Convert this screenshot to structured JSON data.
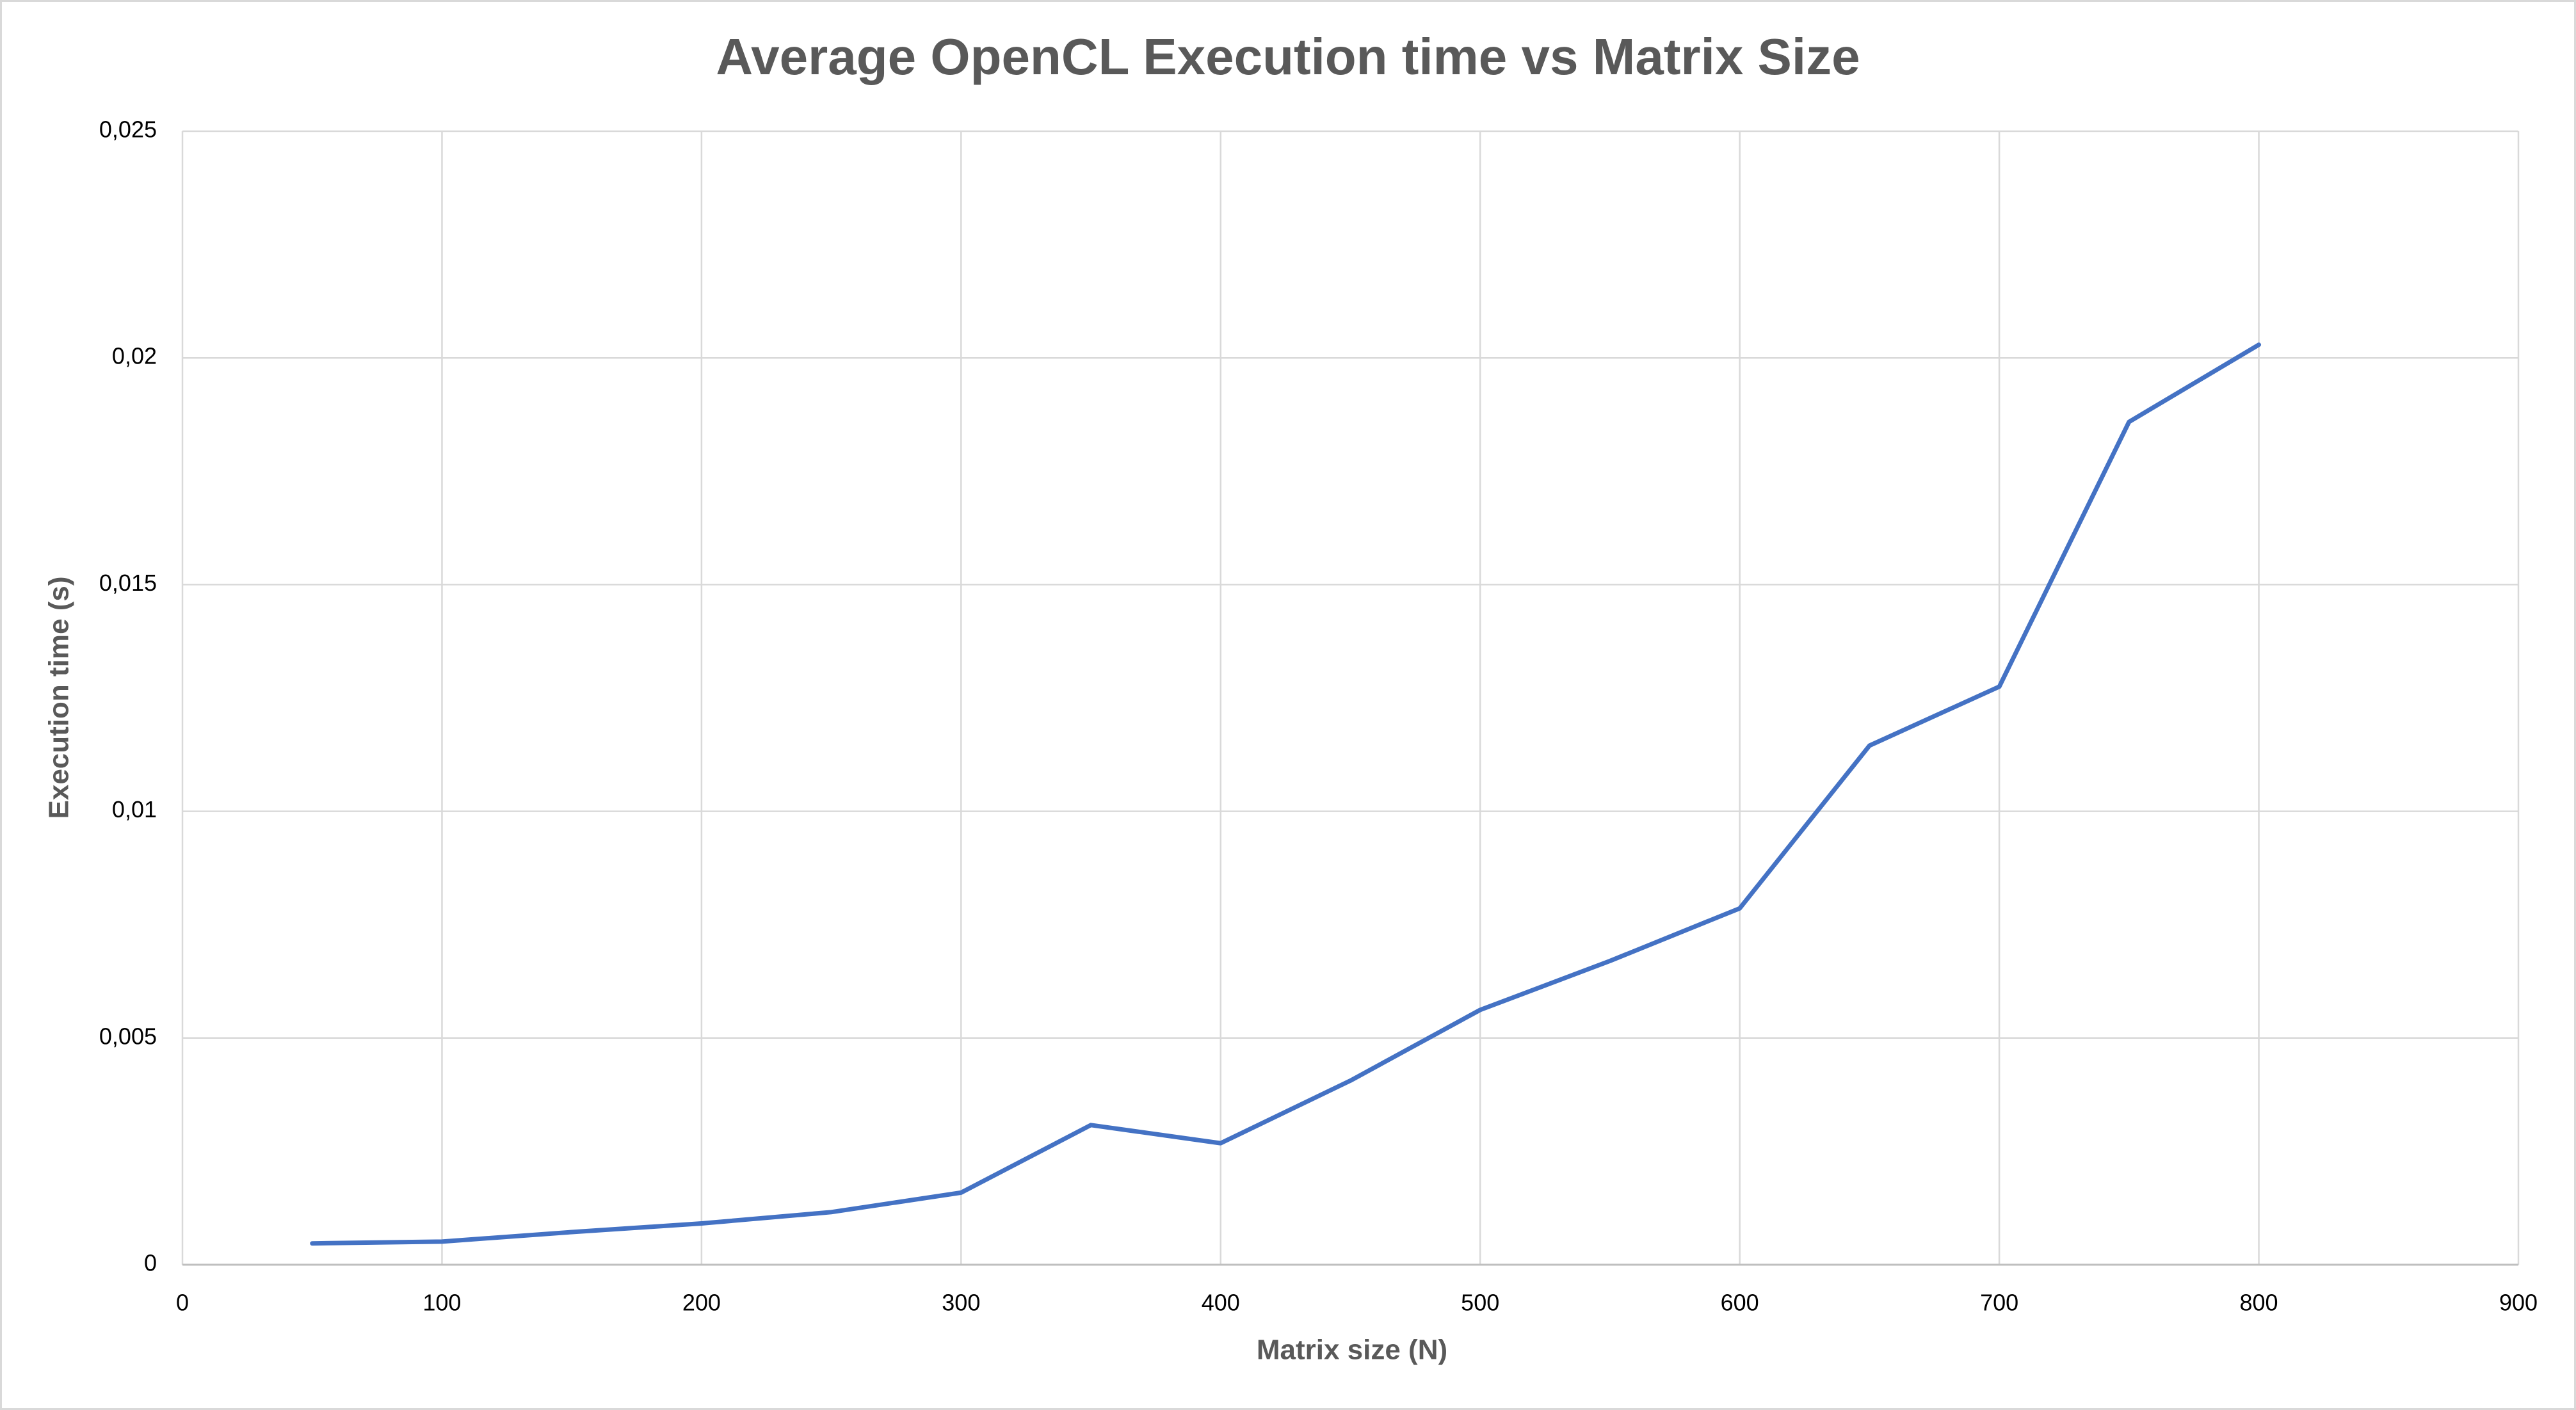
{
  "chart_data": {
    "type": "line",
    "title": "Average OpenCL Execution time vs Matrix Size",
    "x_label": "Matrix size (N)",
    "y_label": "Execution time (s)",
    "x": [
      50,
      100,
      150,
      200,
      250,
      300,
      350,
      400,
      450,
      500,
      550,
      600,
      650,
      700,
      750,
      800
    ],
    "values": [
      0.00047,
      0.00051,
      0.00072,
      0.00091,
      0.00116,
      0.00159,
      0.00308,
      0.00268,
      0.00406,
      0.00562,
      0.0067,
      0.00786,
      0.01145,
      0.01275,
      0.01859,
      0.02029
    ],
    "color": "#4472c4",
    "xlim": [
      0,
      900
    ],
    "xticks": [
      0,
      100,
      200,
      300,
      400,
      500,
      600,
      700,
      800,
      900
    ],
    "ylim": [
      0,
      0.025
    ],
    "yticks": [
      0,
      {
        "value": 0.005,
        "label": "0,005"
      },
      {
        "value": 0.01,
        "label": "0,01"
      },
      {
        "value": 0.015,
        "label": "0,015"
      },
      {
        "value": 0.02,
        "label": "0,02"
      },
      {
        "value": 0.025,
        "label": "0,025"
      }
    ],
    "grid": true
  }
}
